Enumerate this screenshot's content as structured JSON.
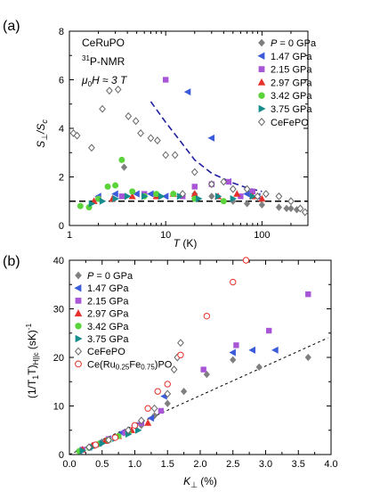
{
  "chart_data": [
    {
      "panel": "(a)",
      "type": "scatter",
      "xlabel_main": "T",
      "xlabel_unit": " (K)",
      "ylabel_main": "S",
      "ylabel_sub1": "⊥",
      "ylabel_mid": "/S",
      "ylabel_sub2": "c",
      "xscale": "log",
      "xlim": [
        1,
        300
      ],
      "ylim": [
        0,
        8
      ],
      "x_ticks": [
        1,
        10,
        100
      ],
      "x_tick_labels": [
        "1",
        "10",
        "100"
      ],
      "y_ticks": [
        0,
        2,
        4,
        6,
        8
      ],
      "y_tick_labels": [
        "0",
        "2",
        "4",
        "6",
        "8"
      ],
      "annotation": {
        "line1": "CeRuPO",
        "line2_sup": "31",
        "line2_main": "P-NMR",
        "line3_mu": "μ",
        "line3_sub": "0",
        "line3_rest": "H ≈ 3 T"
      },
      "legend_position": "top-right",
      "reference_line": {
        "y": 1,
        "style": "dashed",
        "color": "#000000"
      },
      "guide_curve": {
        "style": "dashed",
        "color": "#1f1fa0",
        "points": [
          [
            7,
            5.1
          ],
          [
            10,
            4.25
          ],
          [
            15,
            3.35
          ],
          [
            20,
            2.7
          ],
          [
            30,
            2.15
          ],
          [
            50,
            1.75
          ],
          [
            70,
            1.55
          ],
          [
            100,
            1.4
          ]
        ]
      },
      "series": [
        {
          "name": "P = 0 GPa",
          "marker": "diamond",
          "color": "#7f7f7f",
          "filled": true,
          "points": [
            [
              3.7,
              2.4
            ],
            [
              20,
              1.3
            ],
            [
              30,
              1.2
            ],
            [
              50,
              1.0
            ],
            [
              70,
              0.9
            ],
            [
              100,
              0.85
            ],
            [
              150,
              0.75
            ],
            [
              180,
              0.7
            ],
            [
              200,
              0.7
            ],
            [
              230,
              0.65
            ]
          ]
        },
        {
          "name": "1.47 GPa",
          "marker": "triangle-left",
          "color": "#3b5bdb",
          "filled": true,
          "points": [
            [
              2.0,
              1.2
            ],
            [
              3.0,
              1.3
            ],
            [
              5.0,
              1.3
            ],
            [
              7.0,
              1.3
            ],
            [
              10,
              1.2
            ],
            [
              17,
              5.5
            ],
            [
              30,
              3.6
            ],
            [
              45,
              1.8
            ],
            [
              70,
              1.3
            ],
            [
              90,
              1.2
            ]
          ]
        },
        {
          "name": "2.15 GPa",
          "marker": "square",
          "color": "#a855d6",
          "filled": true,
          "points": [
            [
              2.0,
              1.1
            ],
            [
              3.5,
              1.2
            ],
            [
              6,
              1.3
            ],
            [
              10,
              6.0
            ],
            [
              15,
              1.2
            ],
            [
              20,
              1.6
            ],
            [
              30,
              1.7
            ],
            [
              45,
              1.8
            ],
            [
              60,
              1.2
            ],
            [
              80,
              1.4
            ]
          ]
        },
        {
          "name": "2.97 GPa",
          "marker": "triangle-up",
          "color": "#e8302b",
          "filled": true,
          "points": [
            [
              1.8,
              1.0
            ],
            [
              2.8,
              1.1
            ],
            [
              4.5,
              1.2
            ],
            [
              8,
              1.2
            ],
            [
              12,
              1.3
            ],
            [
              20,
              1.3
            ],
            [
              35,
              1.2
            ],
            [
              55,
              1.3
            ],
            [
              80,
              1.2
            ],
            [
              100,
              1.1
            ]
          ]
        },
        {
          "name": "3.42 GPa",
          "marker": "circle",
          "color": "#5ad43a",
          "filled": true,
          "points": [
            [
              1.3,
              0.8
            ],
            [
              1.6,
              0.75
            ],
            [
              2.0,
              1.1
            ],
            [
              2.5,
              1.6
            ],
            [
              3.0,
              1.65
            ],
            [
              3.5,
              2.7
            ],
            [
              4.5,
              1.4
            ],
            [
              6,
              1.2
            ],
            [
              8,
              1.3
            ],
            [
              12,
              1.3
            ],
            [
              20,
              1.1
            ],
            [
              40,
              1.0
            ]
          ]
        },
        {
          "name": "3.75 GPa",
          "marker": "triangle-right",
          "color": "#178c8c",
          "filled": true,
          "points": [
            [
              1.7,
              0.9
            ],
            [
              2.2,
              1.0
            ],
            [
              3.0,
              1.1
            ],
            [
              4.0,
              1.2
            ],
            [
              6,
              1.2
            ],
            [
              9,
              1.2
            ],
            [
              14,
              1.2
            ],
            [
              22,
              1.1
            ],
            [
              35,
              1.2
            ],
            [
              50,
              1.1
            ],
            [
              80,
              1.2
            ]
          ]
        },
        {
          "name": "CeFePO",
          "marker": "diamond",
          "color": "#666666",
          "filled": false,
          "points": [
            [
              1.1,
              3.8
            ],
            [
              1.2,
              3.7
            ],
            [
              1.7,
              3.2
            ],
            [
              2.2,
              4.8
            ],
            [
              2.6,
              5.55
            ],
            [
              3.2,
              5.6
            ],
            [
              4.1,
              4.5
            ],
            [
              4.9,
              4.3
            ],
            [
              5.5,
              3.8
            ],
            [
              7.0,
              3.6
            ],
            [
              8.2,
              3.5
            ],
            [
              10,
              2.9
            ],
            [
              12.5,
              2.9
            ],
            [
              15,
              1.3
            ],
            [
              20,
              2.2
            ],
            [
              30,
              1.7
            ],
            [
              40,
              1.8
            ],
            [
              50,
              1.5
            ],
            [
              70,
              1.5
            ],
            [
              90,
              1.2
            ],
            [
              110,
              1.3
            ],
            [
              150,
              1.2
            ],
            [
              200,
              1.0
            ],
            [
              250,
              0.7
            ],
            [
              280,
              0.55
            ]
          ]
        }
      ]
    },
    {
      "panel": "(b)",
      "type": "scatter",
      "xlabel_main": "K",
      "xlabel_sub": "⊥",
      "xlabel_unit": " (%)",
      "ylabel_main": "(1/T",
      "ylabel_sub1": "1",
      "ylabel_mid": "T)",
      "ylabel_sub2": "H||c",
      "ylabel_unit": " (sK)",
      "ylabel_sup": "-1",
      "xlim": [
        0.0,
        4.0
      ],
      "ylim": [
        0,
        40
      ],
      "x_ticks": [
        0.0,
        0.5,
        1.0,
        1.5,
        2.0,
        2.5,
        3.0,
        3.5,
        4.0
      ],
      "x_tick_labels": [
        "0.0",
        "0.5",
        "1.0",
        "1.5",
        "2.0",
        "2.5",
        "3.0",
        "3.5",
        "4.0"
      ],
      "y_ticks": [
        0,
        10,
        20,
        30,
        40
      ],
      "y_tick_labels": [
        "0",
        "10",
        "20",
        "30",
        "40"
      ],
      "legend_position": "top-left",
      "reference_line": {
        "style": "dashed",
        "color": "#000000",
        "points": [
          [
            0.0,
            0.0
          ],
          [
            3.95,
            24.0
          ]
        ]
      },
      "series": [
        {
          "name": "P = 0 GPa",
          "marker": "diamond",
          "color": "#7f7f7f",
          "filled": true,
          "points": [
            [
              0.2,
              1.0
            ],
            [
              0.35,
              1.8
            ],
            [
              0.5,
              2.6
            ],
            [
              0.7,
              3.5
            ],
            [
              0.9,
              4.5
            ],
            [
              1.1,
              6.0
            ],
            [
              1.3,
              8.0
            ],
            [
              1.5,
              10.5
            ],
            [
              1.75,
              13.0
            ],
            [
              2.1,
              16.5
            ],
            [
              2.5,
              19.5
            ],
            [
              2.9,
              18.0
            ],
            [
              3.65,
              20.0
            ]
          ]
        },
        {
          "name": "1.47 GPa",
          "marker": "triangle-left",
          "color": "#3b5bdb",
          "filled": true,
          "points": [
            [
              0.15,
              0.8
            ],
            [
              0.3,
              1.5
            ],
            [
              0.45,
              2.3
            ],
            [
              0.6,
              3.2
            ],
            [
              0.8,
              4.5
            ],
            [
              1.0,
              6.0
            ],
            [
              1.25,
              7.5
            ],
            [
              1.45,
              12.0
            ],
            [
              2.5,
              21.0
            ],
            [
              2.8,
              21.5
            ],
            [
              3.15,
              21.5
            ]
          ]
        },
        {
          "name": "2.15 GPa",
          "marker": "square",
          "color": "#a855d6",
          "filled": true,
          "points": [
            [
              0.2,
              1.0
            ],
            [
              0.4,
              2.0
            ],
            [
              0.6,
              3.2
            ],
            [
              0.85,
              4.5
            ],
            [
              1.1,
              6.5
            ],
            [
              1.4,
              9.0
            ],
            [
              2.05,
              17.5
            ],
            [
              2.55,
              22.5
            ],
            [
              3.05,
              25.5
            ],
            [
              3.65,
              33.0
            ]
          ]
        },
        {
          "name": "2.97 GPa",
          "marker": "triangle-up",
          "color": "#e8302b",
          "filled": true,
          "points": [
            [
              0.2,
              1.0
            ],
            [
              0.35,
              1.8
            ],
            [
              0.55,
              2.8
            ],
            [
              0.75,
              3.8
            ],
            [
              0.95,
              5.0
            ],
            [
              1.2,
              6.5
            ]
          ]
        },
        {
          "name": "3.42 GPa",
          "marker": "circle",
          "color": "#5ad43a",
          "filled": true,
          "points": [
            [
              0.15,
              0.7
            ],
            [
              0.3,
              1.4
            ],
            [
              0.45,
              2.2
            ],
            [
              0.6,
              3.0
            ],
            [
              0.75,
              3.8
            ],
            [
              0.9,
              4.5
            ]
          ]
        },
        {
          "name": "3.75 GPa",
          "marker": "triangle-right",
          "color": "#178c8c",
          "filled": true,
          "points": [
            [
              0.2,
              0.8
            ],
            [
              0.35,
              1.5
            ],
            [
              0.5,
              2.3
            ],
            [
              0.7,
              3.3
            ],
            [
              0.9,
              4.2
            ],
            [
              1.05,
              5.0
            ]
          ]
        },
        {
          "name": "CeFePO",
          "marker": "diamond",
          "color": "#666666",
          "filled": false,
          "points": [
            [
              0.3,
              1.5
            ],
            [
              0.6,
              3.0
            ],
            [
              0.9,
              5.0
            ],
            [
              1.1,
              7.0
            ],
            [
              1.3,
              9.5
            ],
            [
              1.5,
              12.5
            ],
            [
              1.6,
              17.5
            ],
            [
              1.65,
              20.0
            ],
            [
              1.7,
              23.0
            ]
          ]
        },
        {
          "name": "Ce(Ru0.25Fe0.75)PO",
          "marker": "circle",
          "color": "#e8302b",
          "filled": false,
          "label_base": "Ce(Ru",
          "label_sub1": "0.25",
          "label_mid": "Fe",
          "label_sub2": "0.75",
          "label_end": ")PO",
          "points": [
            [
              0.4,
              2.0
            ],
            [
              0.7,
              3.5
            ],
            [
              1.0,
              6.0
            ],
            [
              1.2,
              9.5
            ],
            [
              1.35,
              13.0
            ],
            [
              1.5,
              14.5
            ],
            [
              1.7,
              20.5
            ],
            [
              2.1,
              28.5
            ],
            [
              2.5,
              35.5
            ],
            [
              2.7,
              40.0
            ]
          ]
        }
      ]
    }
  ]
}
